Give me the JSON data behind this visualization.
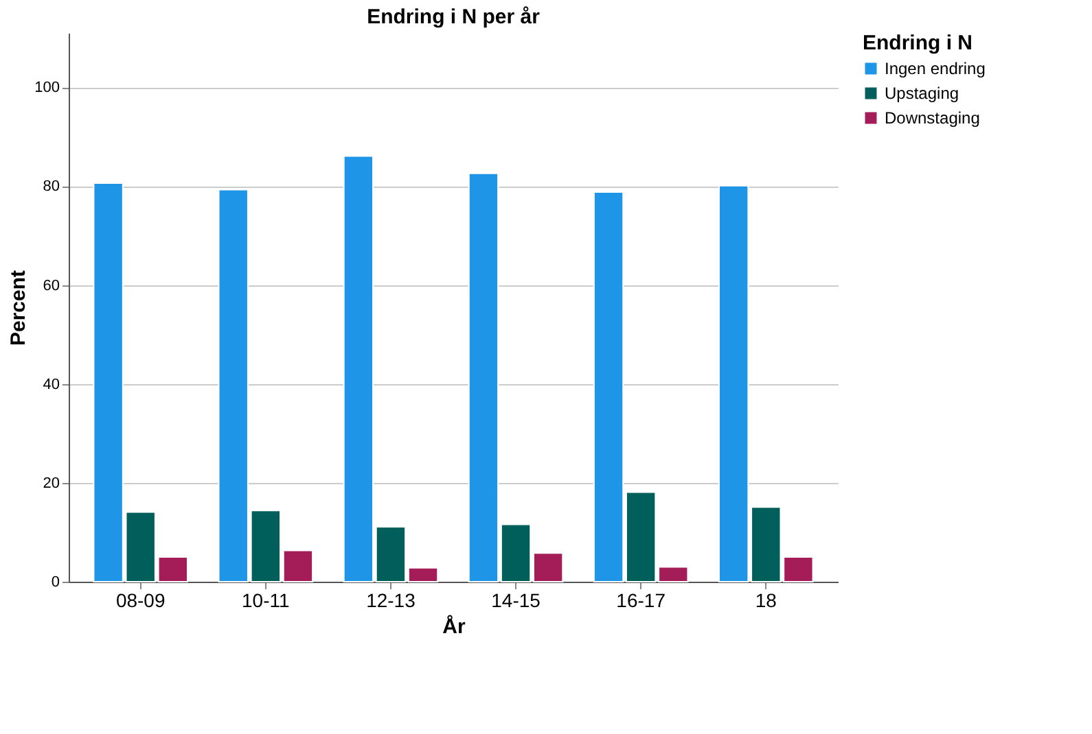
{
  "chart_data": {
    "type": "bar",
    "title": "Endring i N per år",
    "xlabel": "År",
    "ylabel": "Percent",
    "legend_title": "Endring i N",
    "categories": [
      "08-09",
      "10-11",
      "12-13",
      "14-15",
      "16-17",
      "18"
    ],
    "series": [
      {
        "name": "Ingen endring",
        "color": "#1f95e8",
        "values": [
          80.6,
          79.3,
          86.1,
          82.6,
          78.8,
          80.1
        ]
      },
      {
        "name": "Upstaging",
        "color": "#005f5a",
        "values": [
          14.1,
          14.4,
          11.1,
          11.6,
          18.1,
          15.1
        ]
      },
      {
        "name": "Downstaging",
        "color": "#a41c58",
        "values": [
          5.0,
          6.3,
          2.8,
          5.8,
          3.0,
          5.0
        ]
      }
    ],
    "ylim": [
      0,
      111
    ],
    "yticks": [
      0,
      20,
      40,
      60,
      80,
      100
    ],
    "grid": "y",
    "legend": "top right"
  }
}
